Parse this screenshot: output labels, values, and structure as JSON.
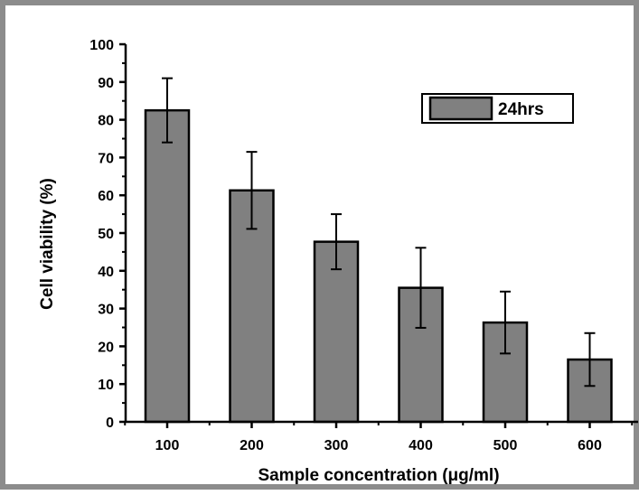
{
  "chart_data": {
    "type": "bar",
    "categories": [
      "100",
      "200",
      "300",
      "400",
      "500",
      "600"
    ],
    "series": [
      {
        "name": "24hrs",
        "values": [
          82.5,
          61.3,
          47.7,
          35.5,
          26.3,
          16.5
        ],
        "error": [
          8.5,
          10.2,
          7.3,
          10.6,
          8.2,
          7.0
        ]
      }
    ],
    "xlabel": "Sample concentration (μg/ml)",
    "ylabel": "Cell viability (%)",
    "ylim": [
      0,
      100
    ],
    "yticks": [
      0,
      10,
      20,
      30,
      40,
      50,
      60,
      70,
      80,
      90,
      100
    ],
    "legend_position": "top-right",
    "colors": {
      "bar_fill": "#808080",
      "bar_stroke": "#000000",
      "frame": "#8c8c8c"
    },
    "grid": false
  }
}
